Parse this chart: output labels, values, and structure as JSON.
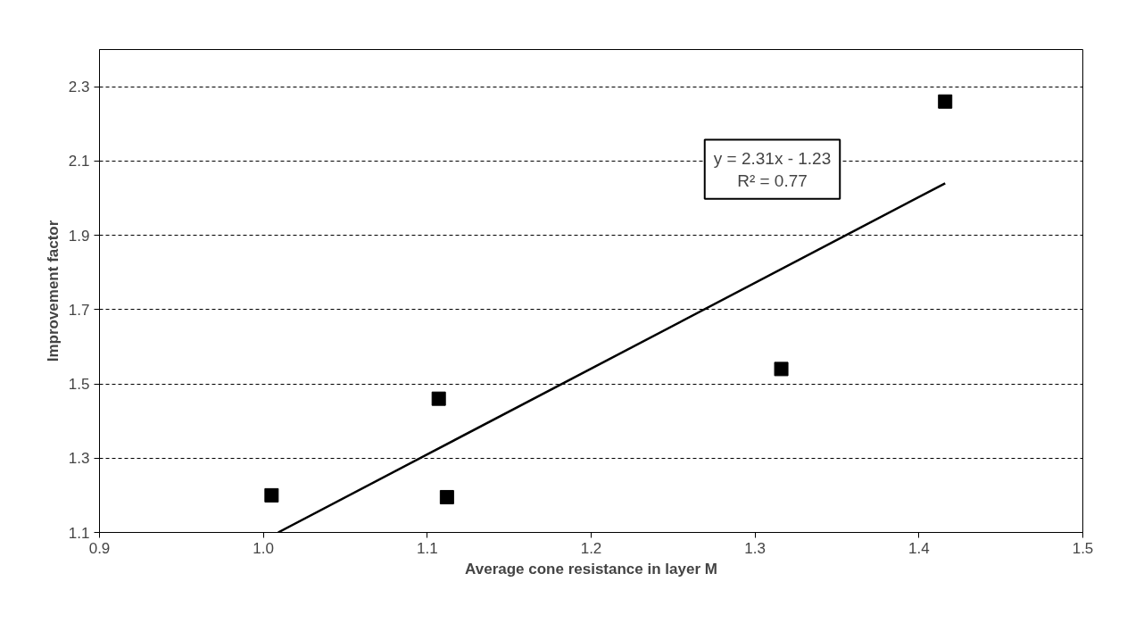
{
  "chart_data": {
    "type": "scatter",
    "xlabel": "Average cone resistance in layer M",
    "ylabel": "Improvement factor",
    "series": [
      {
        "color": "#000000",
        "marker": "square",
        "x": [
          1.005,
          1.107,
          1.112,
          1.316,
          1.416
        ],
        "values": [
          1.2,
          1.46,
          1.195,
          1.54,
          2.26
        ]
      },
      {
        "type": "line",
        "color": "#000000",
        "marker": "none",
        "line_style": "solid",
        "x": [
          1.009,
          1.416
        ],
        "values": [
          1.1,
          2.04
        ]
      }
    ],
    "annotations": [
      "y = 2.31x - 1.23",
      "R² = 0.77"
    ],
    "xlim": [
      0.9,
      1.5
    ],
    "xticks": [
      0.9,
      {
        "value": 1,
        "label": "1.0"
      },
      1.1,
      1.2,
      1.3,
      1.4,
      1.5
    ],
    "ylim": [
      1.1,
      2.4
    ],
    "yticks": [
      1.1,
      1.3,
      1.5,
      1.7,
      1.9,
      2.1,
      2.3
    ],
    "grid": "y"
  }
}
